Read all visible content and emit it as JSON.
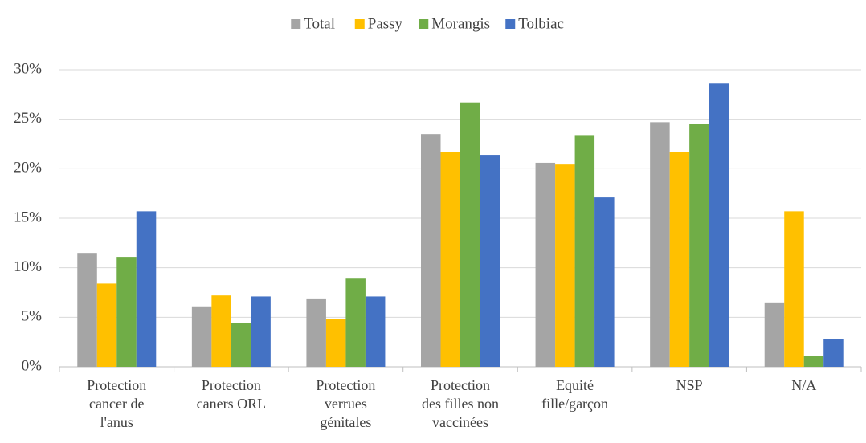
{
  "chart_data": {
    "type": "bar",
    "categories": [
      "Protection cancer de l'anus",
      "Protection caners ORL",
      "Protection verrues génitales",
      "Protection des filles non vaccinées",
      "Equité fille/garçon",
      "NSP",
      "N/A"
    ],
    "series": [
      {
        "name": "Total",
        "color": "#a5a5a5",
        "values": [
          11.5,
          6.1,
          6.9,
          23.5,
          20.6,
          24.7,
          6.5
        ]
      },
      {
        "name": "Passy",
        "color": "#ffc000",
        "values": [
          8.4,
          7.2,
          4.8,
          21.7,
          20.5,
          21.7,
          15.7
        ]
      },
      {
        "name": "Morangis",
        "color": "#70ad47",
        "values": [
          11.1,
          4.4,
          8.9,
          26.7,
          23.4,
          24.5,
          1.1
        ]
      },
      {
        "name": "Tolbiac",
        "color": "#4472c4",
        "values": [
          15.7,
          7.1,
          7.1,
          21.4,
          17.1,
          28.6,
          2.8
        ]
      }
    ],
    "ylim": [
      0,
      30
    ],
    "yticks": [
      {
        "value": 0,
        "label": "0%"
      },
      {
        "value": 5,
        "label": "5%"
      },
      {
        "value": 10,
        "label": "10%"
      },
      {
        "value": 15,
        "label": "15%"
      },
      {
        "value": 20,
        "label": "20%"
      },
      {
        "value": 25,
        "label": "25%"
      },
      {
        "value": 30,
        "label": "30%"
      }
    ],
    "grid": true,
    "legend": "top"
  }
}
